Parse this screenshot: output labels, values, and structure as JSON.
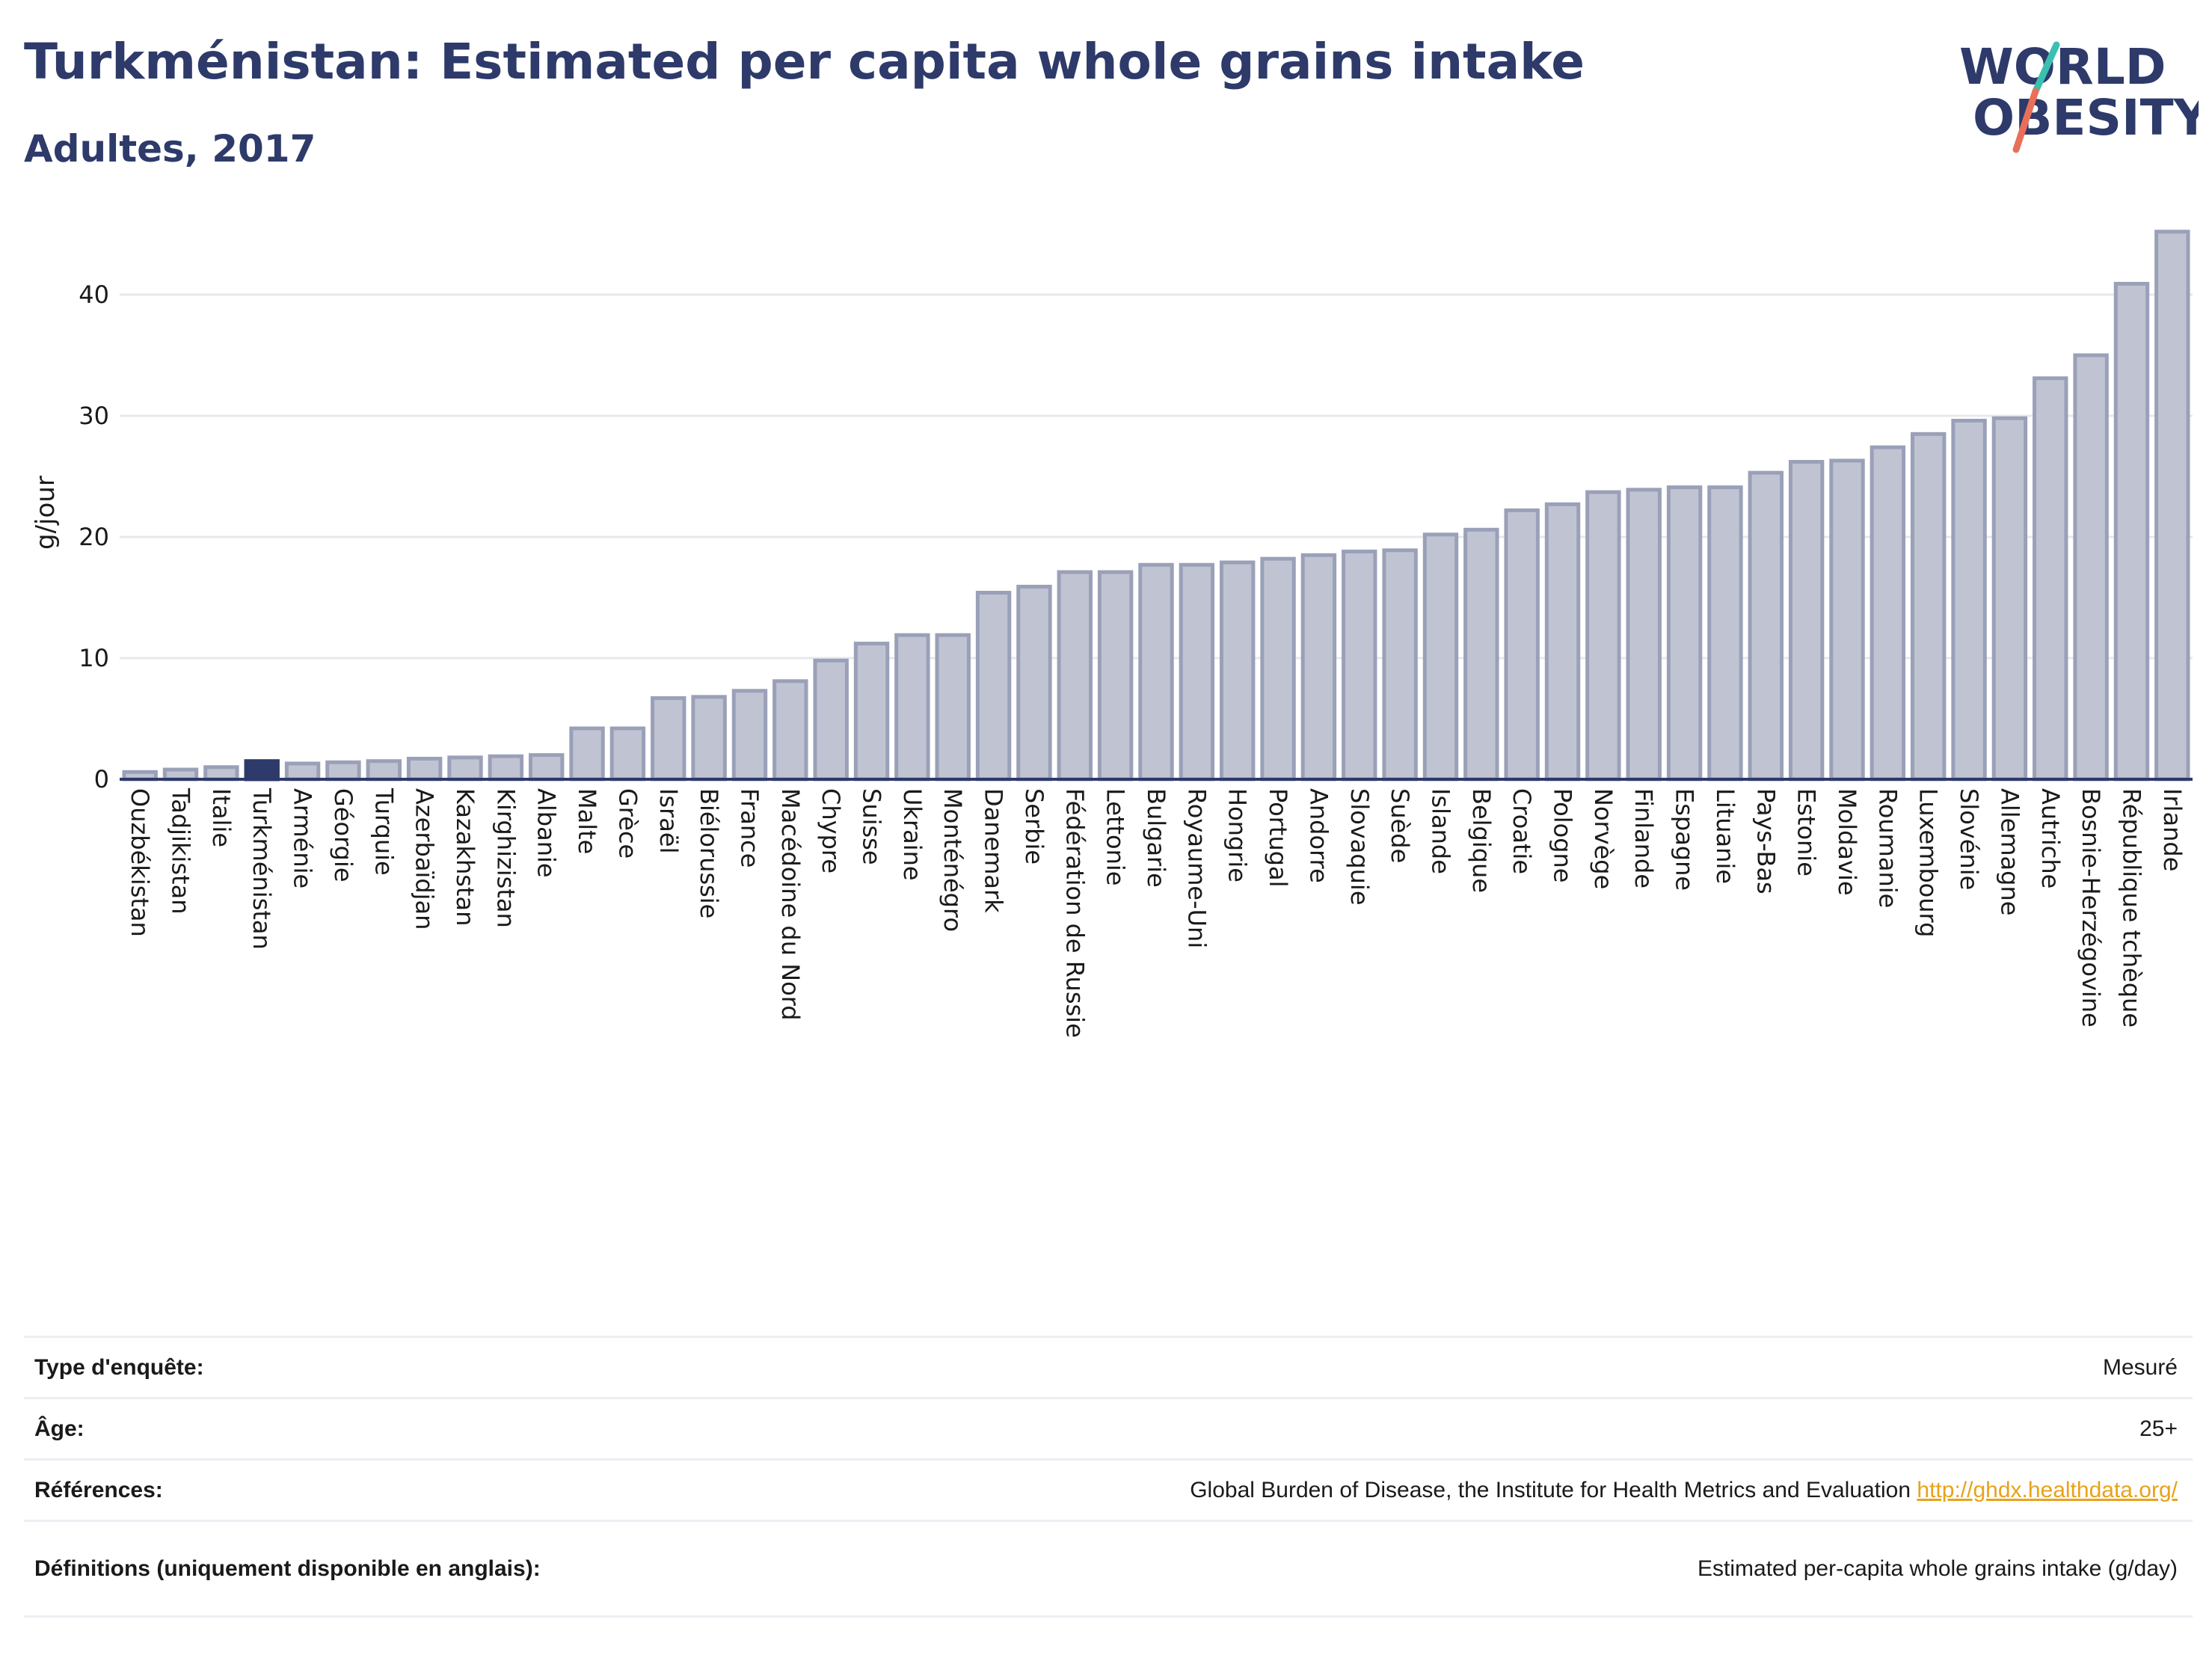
{
  "header": {
    "title": "Turkménistan: Estimated per capita whole grains intake",
    "subtitle": "Adultes, 2017"
  },
  "logo": {
    "line1": "WORLD",
    "line2": "OBESITY"
  },
  "colors": {
    "bar": "#c0c4d2",
    "bar_border": "#9aa0b8",
    "highlight": "#2d3a6a",
    "accent_teal": "#3bbfb0",
    "accent_coral": "#e8705a"
  },
  "chart_data": {
    "type": "bar",
    "title": "Turkménistan: Estimated per capita whole grains intake",
    "subtitle": "Adultes, 2017",
    "ylabel": "g/jour",
    "xlabel": "",
    "ylim": [
      0,
      47
    ],
    "yticks": [
      0,
      10,
      20,
      30,
      40
    ],
    "grid": true,
    "highlight": "Turkménistan",
    "categories": [
      "Ouzbékistan",
      "Tadjikistan",
      "Italie",
      "Turkménistan",
      "Arménie",
      "Géorgie",
      "Turquie",
      "Azerbaïdjan",
      "Kazakhstan",
      "Kirghizistan",
      "Albanie",
      "Malte",
      "Grèce",
      "Israël",
      "Biélorussie",
      "France",
      "Macédoine du Nord",
      "Chypre",
      "Suisse",
      "Ukraine",
      "Monténégro",
      "Danemark",
      "Serbie",
      "Fédération de Russie",
      "Lettonie",
      "Bulgarie",
      "Royaume-Uni",
      "Hongrie",
      "Portugal",
      "Andorre",
      "Slovaquie",
      "Suède",
      "Islande",
      "Belgique",
      "Croatie",
      "Pologne",
      "Norvège",
      "Finlande",
      "Espagne",
      "Lituanie",
      "Pays-Bas",
      "Estonie",
      "Moldavie",
      "Roumanie",
      "Luxembourg",
      "Slovénie",
      "Allemagne",
      "Autriche",
      "Bosnie-Herzégovine",
      "République tchèque",
      "Irlande"
    ],
    "values": [
      0.6,
      0.8,
      1.0,
      1.5,
      1.3,
      1.4,
      1.5,
      1.7,
      1.8,
      1.9,
      2.0,
      4.2,
      4.2,
      6.7,
      6.8,
      7.3,
      8.1,
      9.8,
      11.2,
      11.9,
      11.9,
      15.4,
      15.9,
      17.1,
      17.1,
      17.7,
      17.7,
      17.9,
      18.2,
      18.5,
      18.8,
      18.9,
      20.2,
      20.6,
      22.2,
      22.7,
      23.7,
      23.9,
      24.1,
      24.1,
      25.3,
      26.2,
      26.3,
      27.4,
      28.5,
      29.6,
      29.8,
      33.1,
      35.0,
      40.9,
      45.2
    ]
  },
  "info": {
    "survey_label": "Type d'enquête:",
    "survey_value": "Mesuré",
    "age_label": "Âge:",
    "age_value": "25+",
    "ref_label": "Références:",
    "ref_value": "Global Burden of Disease, the Institute for Health Metrics and Evaluation",
    "ref_link": "http://ghdx.healthdata.org/",
    "def_label": "Définitions (uniquement disponible en anglais):",
    "def_value": "Estimated per-capita whole grains intake (g/day)"
  }
}
